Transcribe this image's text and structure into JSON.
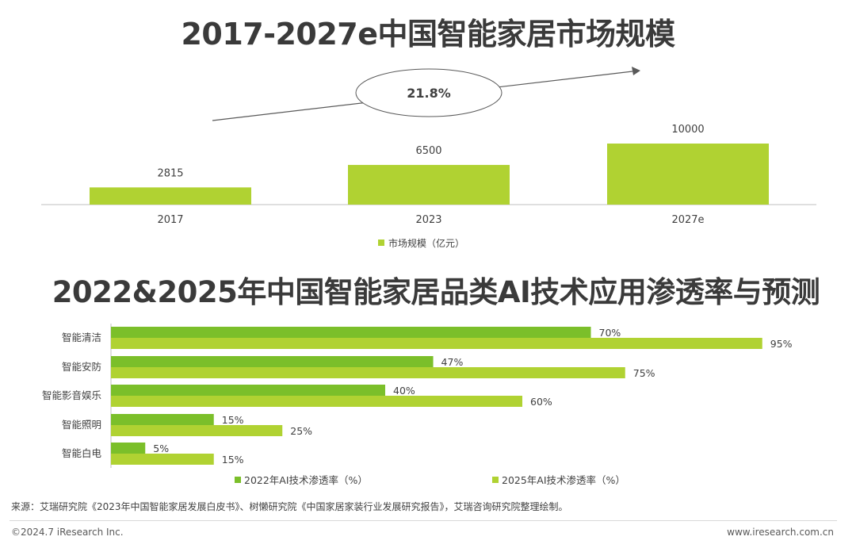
{
  "colors": {
    "bar_light": "#b0d232",
    "bar_dark": "#7bbf2a",
    "axis": "#bfbfbf",
    "text": "#404040"
  },
  "chart_data": [
    {
      "type": "bar",
      "title": "2017-2027e中国智能家居市场规模",
      "categories": [
        "2017",
        "2023",
        "2027e"
      ],
      "series": [
        {
          "name": "市场规模（亿元）",
          "values": [
            2815,
            6500,
            10000
          ]
        }
      ],
      "data_labels": [
        "2815",
        "6500",
        "10000"
      ],
      "annotation": "21.8%",
      "ylim": [
        0,
        10000
      ],
      "grid": false,
      "legend": "bottom"
    },
    {
      "type": "bar",
      "orientation": "horizontal",
      "title": "2022&2025年中国智能家居品类AI技术应用渗透率与预测",
      "categories": [
        "智能清洁",
        "智能安防",
        "智能影音娱乐",
        "智能照明",
        "智能白电"
      ],
      "series": [
        {
          "name": "2022年AI技术渗透率（%）",
          "values": [
            70,
            47,
            40,
            15,
            5
          ],
          "labels": [
            "70%",
            "47%",
            "40%",
            "15%",
            "5%"
          ]
        },
        {
          "name": "2025年AI技术渗透率（%）",
          "values": [
            95,
            75,
            60,
            25,
            15
          ],
          "labels": [
            "95%",
            "75%",
            "60%",
            "25%",
            "15%"
          ]
        }
      ],
      "xlim": [
        0,
        100
      ],
      "grid": false,
      "legend": "bottom"
    }
  ],
  "footer": {
    "source": "来源：艾瑞研究院《2023年中国智能家居发展白皮书》、树懒研究院《中国家居家装行业发展研究报告》，艾瑞咨询研究院整理绘制。",
    "copyright": "©2024.7 iResearch Inc.",
    "website": "www.iresearch.com.cn"
  }
}
